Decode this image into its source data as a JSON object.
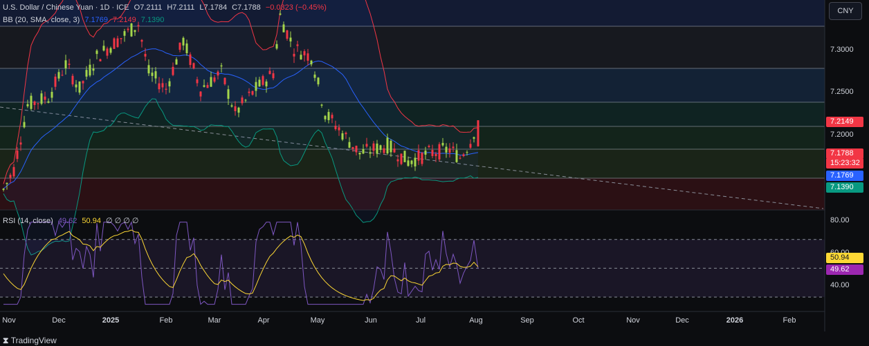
{
  "header": {
    "symbol": "U.S. Dollar / Chinese Yuan · 1D · ICE",
    "o": "O7.2111",
    "h": "H7.2111",
    "l": "L7.1784",
    "c": "C7.1788",
    "change": "−0.0323 (−0.45%)",
    "bb_label": "BB (20, SMA, close, 3)",
    "bb_values": [
      "7.1769",
      "7.2149",
      "7.1390"
    ]
  },
  "rsi": {
    "label": "RSI (14, close)",
    "value": "49.62",
    "ma": "50.94",
    "extras": "∅ ∅ ∅ ∅"
  },
  "currency_button": "CNY",
  "price_axis": {
    "ticks": [
      "7.3000",
      "7.2500",
      "7.2000"
    ]
  },
  "price_tags": {
    "upper": "7.2149",
    "last": "7.1788",
    "countdown": "15:23:32",
    "basis": "7.1769",
    "lower": "7.1390"
  },
  "rsi_axis": {
    "ticks": [
      "80.00",
      "60.00",
      "40.00"
    ],
    "tags": [
      "50.94",
      "49.62"
    ]
  },
  "time_axis": [
    "Nov",
    "Dec",
    "2025",
    "Feb",
    "Mar",
    "Apr",
    "May",
    "Jun",
    "Jul",
    "Aug",
    "Sep",
    "Oct",
    "Nov",
    "Dec",
    "2026",
    "Feb"
  ],
  "brand": "TradingView",
  "colors": {
    "up": "#a5d64b",
    "down": "#f23645",
    "basis": "#2962ff",
    "upper": "#f23645",
    "lower": "#089981",
    "rsi": "#7e57c2",
    "rsi_ma": "#fdd835"
  },
  "chart_data": {
    "type": "candlestick",
    "price_range": [
      7.1,
      7.36
    ],
    "bollinger": {
      "basis": 7.1769,
      "upper": 7.2149,
      "lower": 7.139
    },
    "last_close": 7.1788,
    "rsi": {
      "value": 49.62,
      "ma": 50.94,
      "range": [
        20,
        90
      ]
    }
  }
}
